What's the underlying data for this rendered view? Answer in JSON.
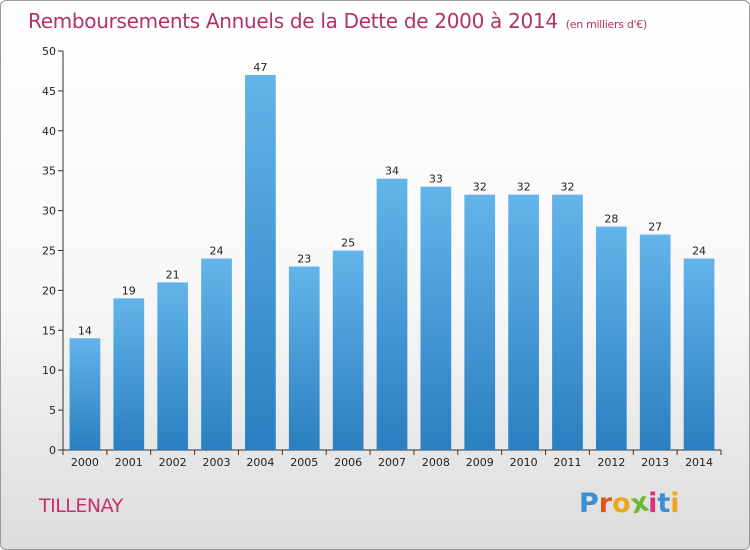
{
  "header": {
    "title": "Remboursements Annuels de la Dette de 2000 à 2014",
    "subtitle": "(en milliers d'€)"
  },
  "footer": {
    "commune": "TILLENAY",
    "logo_letters": [
      "P",
      "r",
      "o",
      "x",
      "i",
      "t",
      "i"
    ],
    "logo_colors": [
      "#3a8fd6",
      "#e2521c",
      "#f2a51c",
      "#6cb82e",
      "#d8327a",
      "#3a8fd6",
      "#f2a51c"
    ]
  },
  "colors": {
    "bar_top": "#63b4ea",
    "bar_bottom": "#2a7fc0",
    "title": "#b5306b"
  },
  "chart_data": {
    "type": "bar",
    "title": "Remboursements Annuels de la Dette de 2000 à 2014",
    "subtitle": "(en milliers d'€)",
    "categories": [
      "2000",
      "2001",
      "2002",
      "2003",
      "2004",
      "2005",
      "2006",
      "2007",
      "2008",
      "2009",
      "2010",
      "2011",
      "2012",
      "2013",
      "2014"
    ],
    "values": [
      14,
      19,
      21,
      24,
      47,
      23,
      25,
      34,
      33,
      32,
      32,
      32,
      28,
      27,
      24
    ],
    "ylim": [
      0,
      50
    ],
    "yticks": [
      0,
      5,
      10,
      15,
      20,
      25,
      30,
      35,
      40,
      45,
      50
    ],
    "grid": false,
    "legend": "none"
  }
}
